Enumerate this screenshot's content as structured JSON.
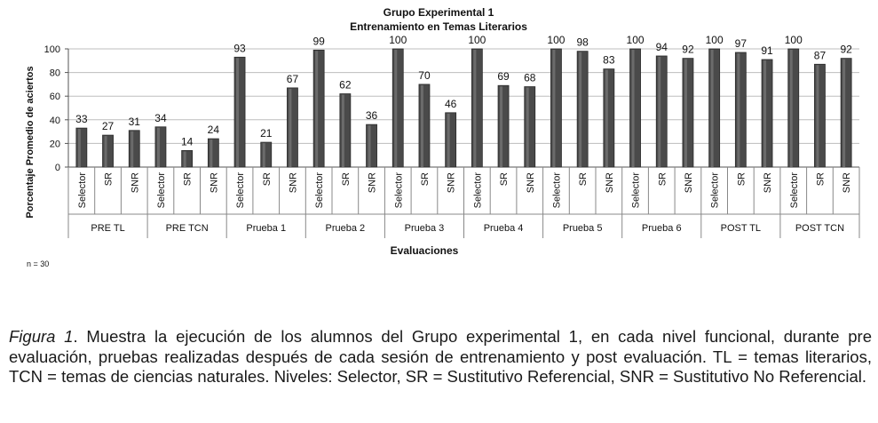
{
  "chart_data": {
    "type": "bar",
    "title": "Grupo Experimental 1",
    "subtitle": "Entrenamiento en Temas Literarios",
    "xlabel": "Evaluaciones",
    "ylabel": "Porcentaje Promedio de aciertos",
    "ylim": [
      0,
      100
    ],
    "yticks": [
      "0",
      "20",
      "40",
      "60",
      "80",
      "100"
    ],
    "grid": true,
    "legend": "none",
    "bar_color": "#4a4a4a",
    "groups": [
      {
        "label": "PRE TL",
        "levels": [
          "Selector",
          "SR",
          "SNR"
        ],
        "values": [
          33,
          27,
          31
        ]
      },
      {
        "label": "PRE TCN",
        "levels": [
          "Selector",
          "SR",
          "SNR"
        ],
        "values": [
          34,
          14,
          24
        ]
      },
      {
        "label": "Prueba 1",
        "levels": [
          "Selector",
          "SR",
          "SNR"
        ],
        "values": [
          93,
          21,
          67
        ]
      },
      {
        "label": "Prueba 2",
        "levels": [
          "Selector",
          "SR",
          "SNR"
        ],
        "values": [
          99,
          62,
          36
        ]
      },
      {
        "label": "Prueba 3",
        "levels": [
          "Selector",
          "SR",
          "SNR"
        ],
        "values": [
          100,
          70,
          46
        ]
      },
      {
        "label": "Prueba 4",
        "levels": [
          "Selector",
          "SR",
          "SNR"
        ],
        "values": [
          100,
          69,
          68
        ]
      },
      {
        "label": "Prueba 5",
        "levels": [
          "Selector",
          "SR",
          "SNR"
        ],
        "values": [
          100,
          98,
          83
        ]
      },
      {
        "label": "Prueba 6",
        "levels": [
          "Selector",
          "SR",
          "SNR"
        ],
        "values": [
          100,
          94,
          92
        ]
      },
      {
        "label": "POST TL",
        "levels": [
          "Selector",
          "SR",
          "SNR"
        ],
        "values": [
          100,
          97,
          91
        ]
      },
      {
        "label": "POST TCN",
        "levels": [
          "Selector",
          "SR",
          "SNR"
        ],
        "values": [
          100,
          87,
          92
        ]
      }
    ],
    "note": "n = 30"
  },
  "caption": {
    "lead": "Figura 1",
    "text": ". Muestra la ejecución de los alumnos del Grupo experimental 1, en cada nivel funcional, durante pre evaluación, pruebas realizadas después de cada sesión de entrenamiento y post evaluación. TL = temas literarios, TCN = temas de ciencias naturales. Niveles: Selector, SR = Sustitutivo Referencial, SNR = Sustitutivo No Referencial."
  }
}
